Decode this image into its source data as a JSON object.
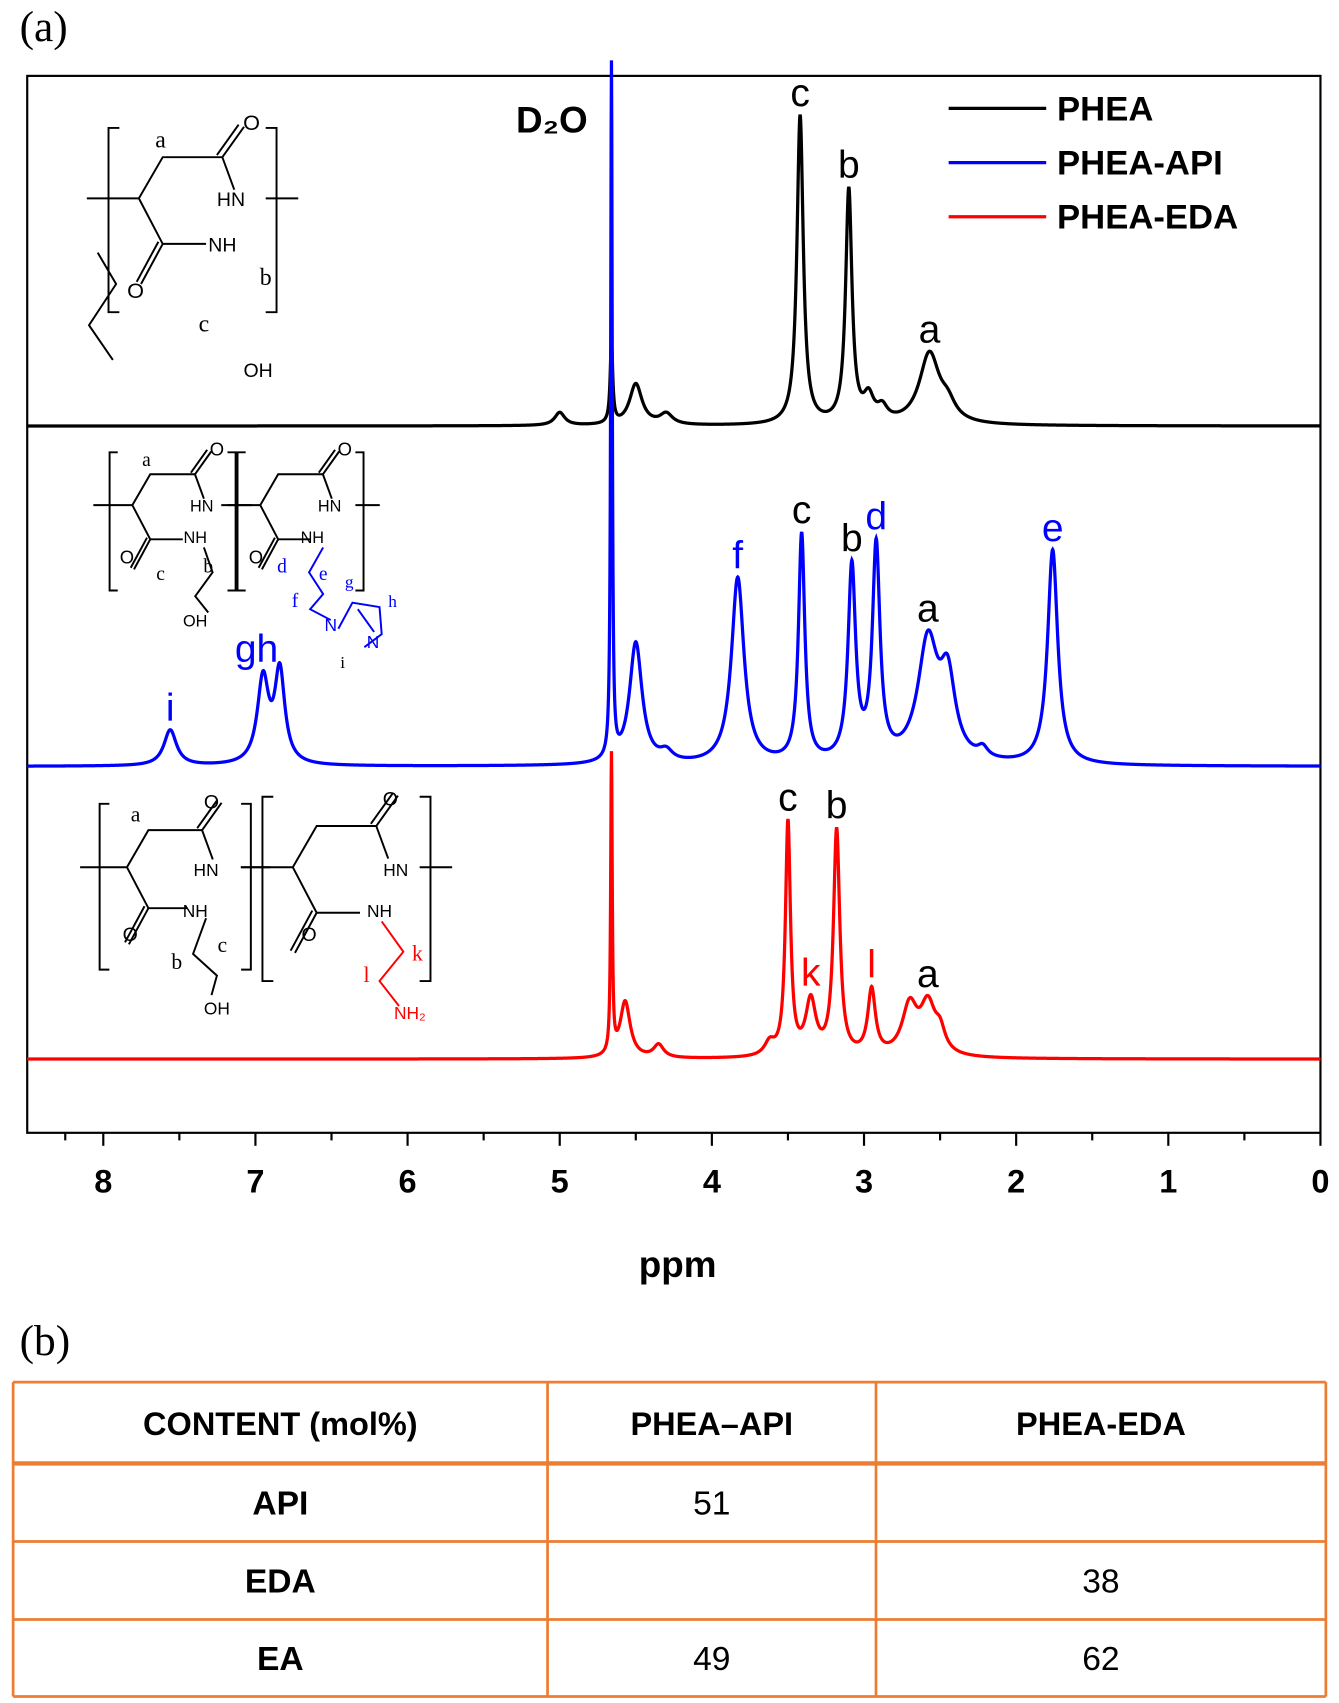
{
  "panel_labels": [
    "(a)",
    "(b)"
  ],
  "chart_data": {
    "type": "nmr",
    "xlabel": "ppm",
    "xlim": [
      8.5,
      0
    ],
    "xticks": [
      8,
      7,
      6,
      5,
      4,
      3,
      2,
      1,
      0
    ],
    "solvent_label": "D₂O",
    "solvent_ppm": 4.66,
    "series": [
      {
        "name": "PHEA",
        "color": "#000000",
        "peaks": [
          {
            "ppm": 5.0,
            "height": 12,
            "width": 0.04
          },
          {
            "ppm": 4.66,
            "height": 75,
            "width": 0.01
          },
          {
            "ppm": 4.5,
            "height": 38,
            "width": 0.05
          },
          {
            "ppm": 4.3,
            "height": 10,
            "width": 0.05
          },
          {
            "ppm": 3.42,
            "height": 285,
            "width": 0.025,
            "label": "c",
            "label_color": "#000000"
          },
          {
            "ppm": 3.1,
            "height": 215,
            "width": 0.025,
            "label": "b",
            "label_color": "#000000"
          },
          {
            "ppm": 2.97,
            "height": 22,
            "width": 0.04
          },
          {
            "ppm": 2.88,
            "height": 12,
            "width": 0.04
          },
          {
            "ppm": 2.57,
            "height": 65,
            "width": 0.08,
            "label": "a",
            "label_color": "#000000"
          },
          {
            "ppm": 2.45,
            "height": 14,
            "width": 0.06
          }
        ]
      },
      {
        "name": "PHEA-API",
        "color": "#0000ff",
        "peaks": [
          {
            "ppm": 7.56,
            "height": 33,
            "width": 0.05,
            "label": "i",
            "label_color": "#0000ff"
          },
          {
            "ppm": 6.95,
            "height": 78,
            "width": 0.045,
            "label": "gh",
            "label_color": "#0000ff"
          },
          {
            "ppm": 6.84,
            "height": 84,
            "width": 0.04
          },
          {
            "ppm": 4.66,
            "height": 640,
            "width": 0.006
          },
          {
            "ppm": 4.5,
            "height": 112,
            "width": 0.05
          },
          {
            "ppm": 4.3,
            "height": 9,
            "width": 0.05
          },
          {
            "ppm": 3.83,
            "height": 172,
            "width": 0.05,
            "label": "f",
            "label_color": "#0000ff"
          },
          {
            "ppm": 3.41,
            "height": 210,
            "width": 0.025,
            "label": "c",
            "label_color": "#000000"
          },
          {
            "ppm": 3.08,
            "height": 178,
            "width": 0.03,
            "label": "b",
            "label_color": "#000000"
          },
          {
            "ppm": 2.92,
            "height": 196,
            "width": 0.03,
            "label": "d",
            "label_color": "#0000ff"
          },
          {
            "ppm": 2.58,
            "height": 110,
            "width": 0.08,
            "label": "a",
            "label_color": "#000000"
          },
          {
            "ppm": 2.45,
            "height": 70,
            "width": 0.06
          },
          {
            "ppm": 2.22,
            "height": 9,
            "width": 0.04
          },
          {
            "ppm": 1.76,
            "height": 198,
            "width": 0.04,
            "label": "e",
            "label_color": "#0000ff"
          }
        ]
      },
      {
        "name": "PHEA-EDA",
        "color": "#ff0000",
        "peaks": [
          {
            "ppm": 4.66,
            "height": 275,
            "width": 0.006
          },
          {
            "ppm": 4.57,
            "height": 52,
            "width": 0.04
          },
          {
            "ppm": 4.35,
            "height": 12,
            "width": 0.04
          },
          {
            "ppm": 3.62,
            "height": 12,
            "width": 0.04
          },
          {
            "ppm": 3.5,
            "height": 215,
            "width": 0.02,
            "label": "c",
            "label_color": "#000000"
          },
          {
            "ppm": 3.35,
            "height": 50,
            "width": 0.04,
            "label": "k",
            "label_color": "#ff0000"
          },
          {
            "ppm": 3.18,
            "height": 208,
            "width": 0.025,
            "label": "b",
            "label_color": "#000000"
          },
          {
            "ppm": 2.95,
            "height": 60,
            "width": 0.03,
            "label": "l",
            "label_color": "#ff0000"
          },
          {
            "ppm": 2.7,
            "height": 45,
            "width": 0.06
          },
          {
            "ppm": 2.58,
            "height": 45,
            "width": 0.06,
            "label": "a",
            "label_color": "#000000"
          },
          {
            "ppm": 2.5,
            "height": 18,
            "width": 0.04
          }
        ]
      }
    ]
  },
  "structures": [
    {
      "texts": [
        "a",
        "O",
        "HN",
        "NH",
        "O",
        "b",
        "c",
        "OH"
      ]
    },
    {
      "texts": [
        "a",
        "O",
        "HN",
        "NH",
        "O",
        "c",
        "b",
        "OH",
        "O",
        "HN",
        "NH",
        "O",
        "d",
        "e",
        "f",
        "N",
        "g",
        "h",
        "N",
        "i"
      ]
    },
    {
      "texts": [
        "a",
        "O",
        "HN",
        "NH",
        "O",
        "b",
        "c",
        "OH",
        "O",
        "HN",
        "NH",
        "O",
        "k",
        "l",
        "NH₂"
      ]
    }
  ],
  "table": {
    "header": [
      "CONTENT (mol%)",
      "PHEA–API",
      "PHEA-EDA"
    ],
    "rows": [
      [
        "API",
        51,
        null
      ],
      [
        "EDA",
        null,
        38
      ],
      [
        "EA",
        49,
        62
      ]
    ]
  }
}
